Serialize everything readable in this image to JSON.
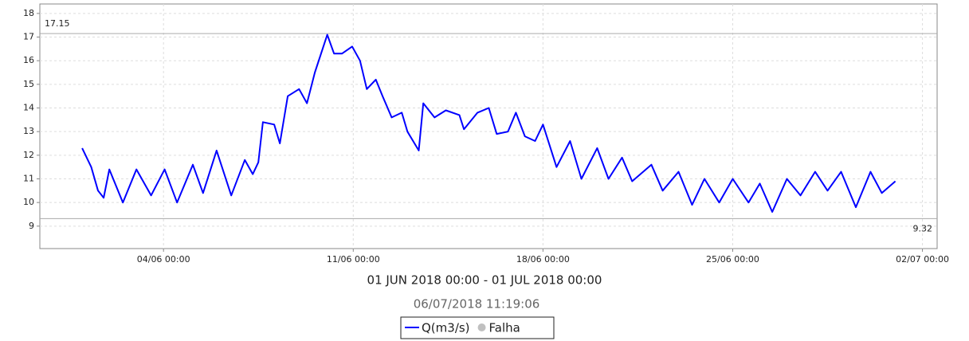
{
  "chart_data": {
    "type": "line",
    "xlabel": "01 JUN 2018 00:00 - 01 JUL 2018 00:00",
    "timestamp": "06/07/2018 11:19:06",
    "x": [
      "01/06 00:00",
      "01/06 08:00",
      "01/06 14:00",
      "01/06 19:00",
      "02/06 00:00",
      "02/06 12:00",
      "03/06 00:00",
      "03/06 13:00",
      "04/06 01:00",
      "04/06 12:00",
      "05/06 02:00",
      "05/06 11:00",
      "05/06 23:00",
      "06/06 12:00",
      "07/06 00:00",
      "07/06 07:00",
      "07/06 12:00",
      "07/06 16:00",
      "08/06 02:00",
      "08/06 07:00",
      "08/06 14:00",
      "09/06 00:00",
      "09/06 07:00",
      "09/06 14:00",
      "10/06 01:00",
      "10/06 07:00",
      "10/06 14:00",
      "10/06 23:00",
      "11/06 06:00",
      "11/06 12:00",
      "11/06 20:00",
      "12/06 02:00",
      "12/06 10:00",
      "12/06 19:00",
      "13/06 00:00",
      "13/06 10:00",
      "13/06 14:00",
      "14/06 00:00",
      "14/06 10:00",
      "14/06 22:00",
      "15/06 02:00",
      "15/06 14:00",
      "16/06 00:00",
      "16/06 07:00",
      "16/06 17:00",
      "17/06 00:00",
      "17/06 08:00",
      "17/06 17:00",
      "18/06 00:00",
      "18/06 12:00",
      "19/06 00:00",
      "19/06 10:00",
      "20/06 00:00",
      "20/06 10:00",
      "20/06 22:00",
      "21/06 07:00",
      "22/06 00:00",
      "22/06 10:00",
      "23/06 00:00",
      "23/06 12:00",
      "23/06 23:00",
      "24/06 12:00",
      "25/06 00:00",
      "25/06 14:00",
      "26/06 00:00",
      "26/06 11:00",
      "27/06 00:00",
      "27/06 12:00",
      "28/06 01:00",
      "28/06 12:00",
      "29/06 00:00",
      "29/06 13:00",
      "30/06 02:00",
      "30/06 12:00",
      "01/07 00:00"
    ],
    "series": [
      {
        "name": "Q(m3/s)",
        "color": "#0000ff",
        "values": [
          12.3,
          11.5,
          10.5,
          10.2,
          11.4,
          10.0,
          11.4,
          10.3,
          11.4,
          10.0,
          11.6,
          10.4,
          12.2,
          10.3,
          11.8,
          11.2,
          11.7,
          13.4,
          13.3,
          12.5,
          14.5,
          14.8,
          14.2,
          15.5,
          17.1,
          16.3,
          16.3,
          16.6,
          16.0,
          14.8,
          15.2,
          14.5,
          13.6,
          13.8,
          13.0,
          12.2,
          14.2,
          13.6,
          13.9,
          13.7,
          13.1,
          13.8,
          14.0,
          12.9,
          13.0,
          13.8,
          12.8,
          12.6,
          13.3,
          11.5,
          12.6,
          11.0,
          12.3,
          11.0,
          11.9,
          10.9,
          11.6,
          10.5,
          11.3,
          9.9,
          11.0,
          10.0,
          11.0,
          10.0,
          10.8,
          9.6,
          11.0,
          10.3,
          11.3,
          10.5,
          11.3,
          9.8,
          11.3,
          10.4,
          10.9
        ]
      }
    ],
    "status_legend": [
      {
        "name": "Falha",
        "color": "#c0c0c0"
      }
    ],
    "hlines": [
      17.15,
      9.32
    ],
    "xlim": [
      "30/05 10:30",
      "02/07 13:00"
    ],
    "xticks": [
      "04/06 00:00",
      "11/06 00:00",
      "18/06 00:00",
      "25/06 00:00",
      "02/07 00:00"
    ],
    "ylim": [
      8.05,
      18.4
    ],
    "yticks": [
      9,
      10,
      11,
      12,
      13,
      14,
      15,
      16,
      17,
      18
    ],
    "grid": true
  }
}
